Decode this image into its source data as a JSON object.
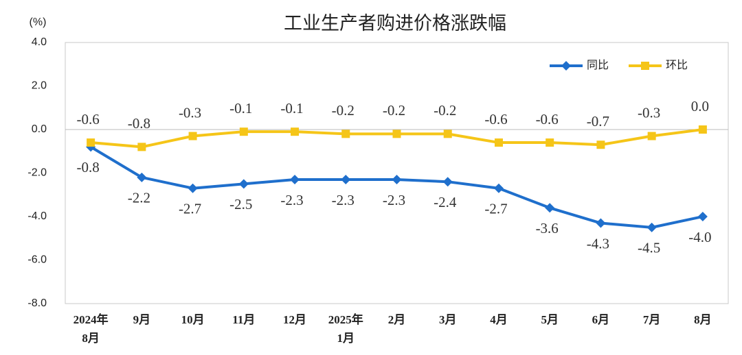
{
  "chart_data": {
    "type": "line",
    "title": "工业生产者购进价格涨跌幅",
    "y_unit": "(%)",
    "categories": [
      "2024年\n8月",
      "9月",
      "10月",
      "11月",
      "12月",
      "2025年\n1月",
      "2月",
      "3月",
      "4月",
      "5月",
      "6月",
      "7月",
      "8月"
    ],
    "series": [
      {
        "name": "同比",
        "color": "#1f6fcc",
        "marker": "diamond",
        "label_position": "below",
        "values": [
          -0.8,
          -2.2,
          -2.7,
          -2.5,
          -2.3,
          -2.3,
          -2.3,
          -2.4,
          -2.7,
          -3.6,
          -4.3,
          -4.5,
          -4.0
        ],
        "value_labels": [
          "-0.8",
          "-2.2",
          "-2.7",
          "-2.5",
          "-2.3",
          "-2.3",
          "-2.3",
          "-2.4",
          "-2.7",
          "-3.6",
          "-4.3",
          "-4.5",
          "-4.0"
        ]
      },
      {
        "name": "环比",
        "color": "#f5c518",
        "marker": "square",
        "label_position": "above",
        "values": [
          -0.6,
          -0.8,
          -0.3,
          -0.1,
          -0.1,
          -0.2,
          -0.2,
          -0.2,
          -0.6,
          -0.6,
          -0.7,
          -0.3,
          0.0
        ],
        "value_labels": [
          "-0.6",
          "-0.8",
          "-0.3",
          "-0.1",
          "-0.1",
          "-0.2",
          "-0.2",
          "-0.2",
          "-0.6",
          "-0.6",
          "-0.7",
          "-0.3",
          "0.0"
        ]
      }
    ],
    "ylim": [
      -8,
      4
    ],
    "yticks": [
      {
        "value": -8,
        "label": "-8.0"
      },
      {
        "value": -6,
        "label": "-6.0"
      },
      {
        "value": -4,
        "label": "-4.0"
      },
      {
        "value": -2,
        "label": "-2.0"
      },
      {
        "value": 0,
        "label": "0.0"
      },
      {
        "value": 2,
        "label": "2.0"
      },
      {
        "value": 4,
        "label": "4.0"
      }
    ],
    "legend": "upper right"
  }
}
